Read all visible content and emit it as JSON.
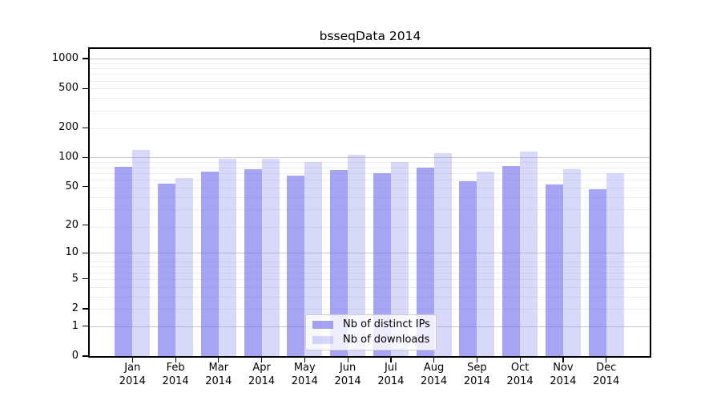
{
  "chart_data": {
    "type": "bar",
    "title": "bsseqData 2014",
    "scale": "log10(value+1)",
    "categories": [
      "Jan 2014",
      "Feb 2014",
      "Mar 2014",
      "Apr 2014",
      "May 2014",
      "Jun 2014",
      "Jul 2014",
      "Aug 2014",
      "Sep 2014",
      "Oct 2014",
      "Nov 2014",
      "Dec 2014"
    ],
    "series": [
      {
        "name": "Nb of distinct IPs",
        "color": "rgba(110,110,237,0.62)",
        "values": [
          80,
          54,
          71,
          75,
          65,
          74,
          69,
          78,
          57,
          81,
          53,
          47
        ]
      },
      {
        "name": "Nb of downloads",
        "color": "rgba(150,150,238,0.37)",
        "values": [
          118,
          62,
          97,
          96,
          89,
          107,
          90,
          110,
          72,
          114,
          75,
          69
        ]
      }
    ],
    "y_ticks": [
      0,
      1,
      2,
      5,
      10,
      20,
      50,
      100,
      200,
      500,
      1000
    ],
    "ylim": [
      0,
      1250
    ],
    "grid": true,
    "legend_position": "inside-bottom-center",
    "colors": {
      "grid_major": "#c6c6c6",
      "grid_minor": "#ededed",
      "spine": "#000000",
      "background": "#ffffff"
    }
  }
}
